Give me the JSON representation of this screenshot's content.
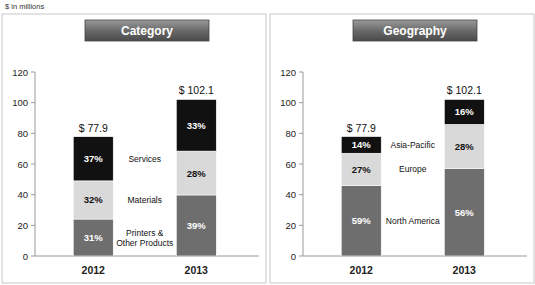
{
  "chart_data": [
    {
      "type": "bar",
      "title": "Category",
      "annotations": [
        "$ in millions"
      ],
      "categories": [
        "2012",
        "2013"
      ],
      "stacked": true,
      "ylim": [
        0,
        120
      ],
      "yticks": [
        0,
        20,
        40,
        60,
        80,
        100,
        120
      ],
      "totals": [
        77.9,
        102.1
      ],
      "total_labels": [
        "$ 77.9",
        "$ 102.1"
      ],
      "series": [
        {
          "name": "Printers & Other Products",
          "color": "#6e6e6e",
          "values": [
            24.1,
            39.8
          ],
          "share_labels": [
            "31%",
            "39%"
          ]
        },
        {
          "name": "Materials",
          "color": "#d9d9d9",
          "values": [
            24.9,
            28.6
          ],
          "share_labels": [
            "32%",
            "28%"
          ]
        },
        {
          "name": "Services",
          "color": "#111111",
          "values": [
            28.8,
            33.7
          ],
          "share_labels": [
            "37%",
            "33%"
          ]
        }
      ]
    },
    {
      "type": "bar",
      "title": "Geography",
      "categories": [
        "2012",
        "2013"
      ],
      "stacked": true,
      "ylim": [
        0,
        120
      ],
      "yticks": [
        0,
        20,
        40,
        60,
        80,
        100,
        120
      ],
      "totals": [
        77.9,
        102.1
      ],
      "total_labels": [
        "$ 77.9",
        "$ 102.1"
      ],
      "series": [
        {
          "name": "North America",
          "color": "#6e6e6e",
          "values": [
            46.0,
            57.2
          ],
          "share_labels": [
            "59%",
            "56%"
          ]
        },
        {
          "name": "Europe",
          "color": "#d9d9d9",
          "values": [
            21.0,
            28.6
          ],
          "share_labels": [
            "27%",
            "28%"
          ]
        },
        {
          "name": "Asia-Pacific",
          "color": "#111111",
          "values": [
            10.9,
            16.3
          ],
          "share_labels": [
            "14%",
            "16%"
          ]
        }
      ]
    }
  ]
}
